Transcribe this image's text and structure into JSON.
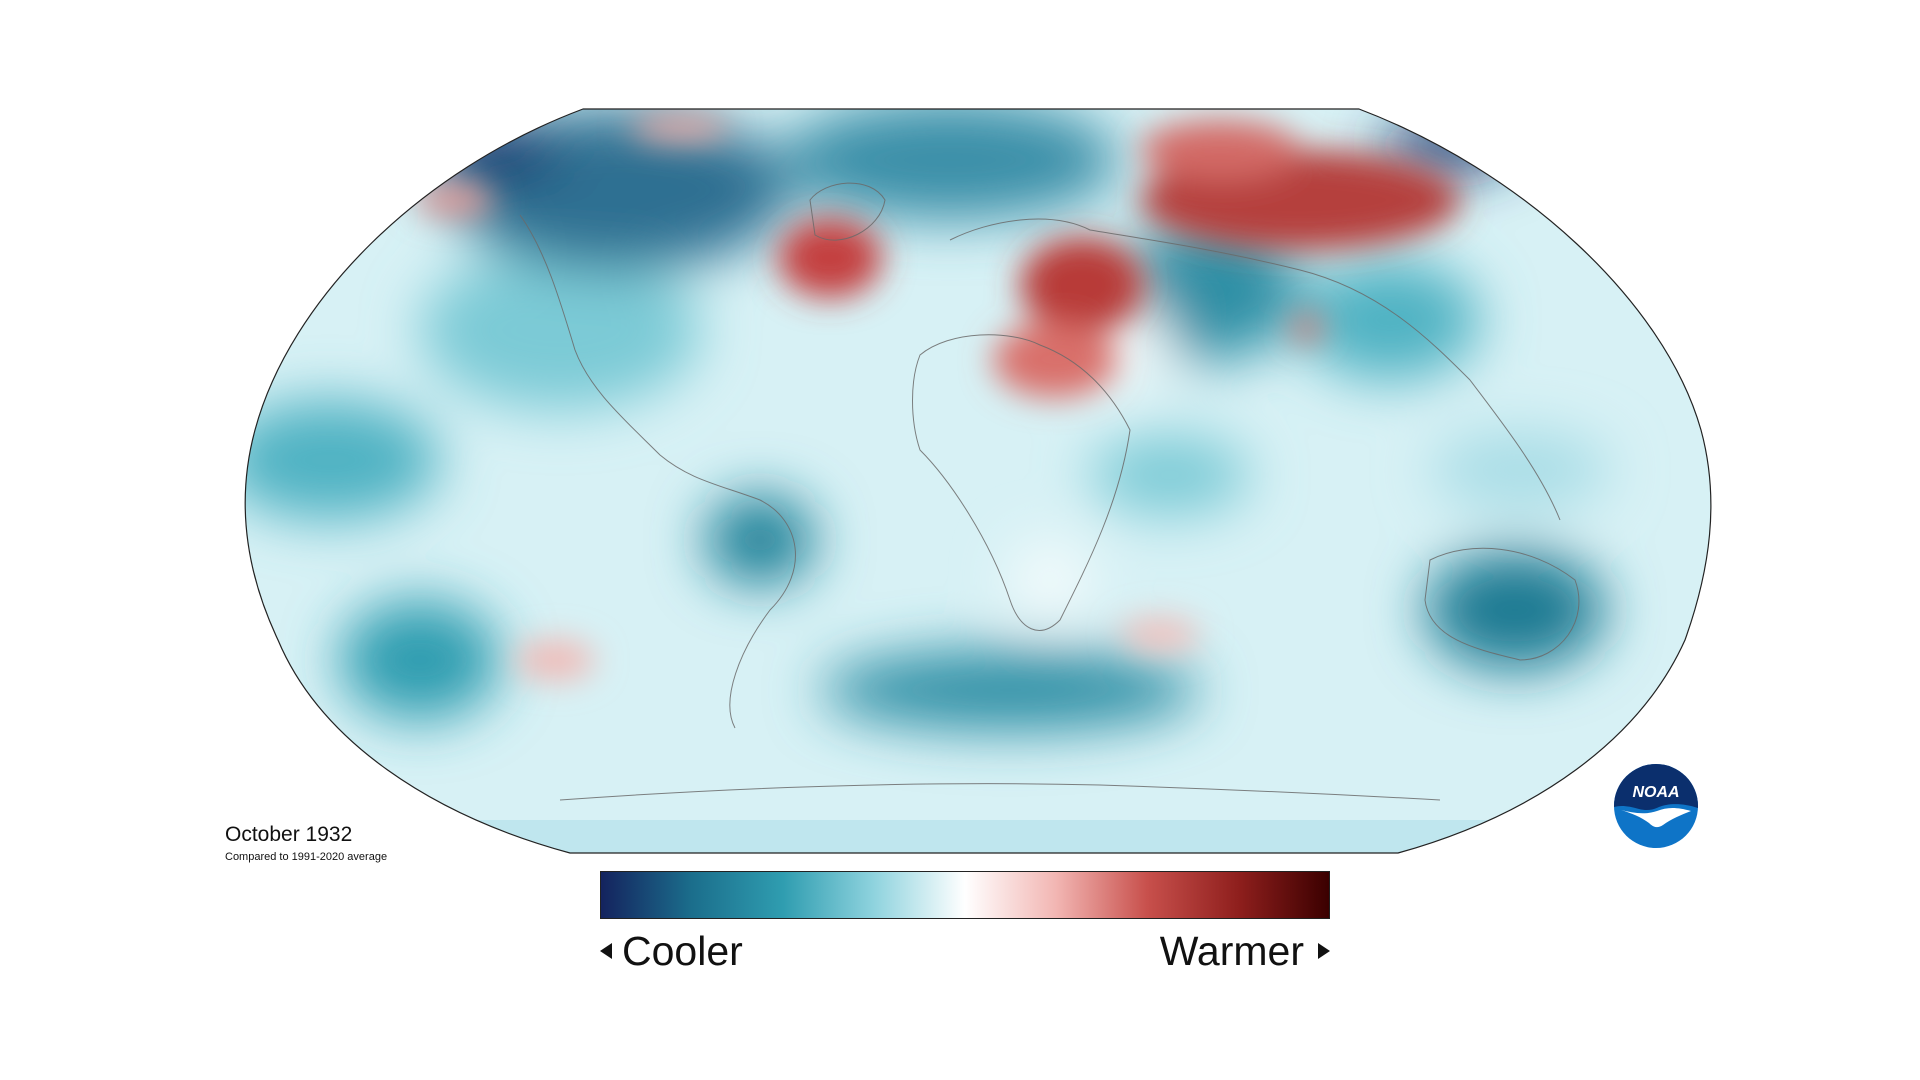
{
  "map": {
    "title": "October 1932",
    "subtitle": "Compared to 1991-2020 average",
    "projection": "Robinson",
    "colorbar": {
      "low_label": "Cooler",
      "high_label": "Warmer",
      "colors": [
        "#14235e",
        "#1b6e8c",
        "#2f9db0",
        "#8fd3de",
        "#ffffff",
        "#f2b6b3",
        "#c8504c",
        "#8f1f1d",
        "#3b0000"
      ]
    },
    "anomaly_regions": [
      {
        "name": "Arctic Canada",
        "anomaly": "cooler"
      },
      {
        "name": "North Atlantic",
        "anomaly": "warmer"
      },
      {
        "name": "Central Europe",
        "anomaly": "warmer"
      },
      {
        "name": "North Africa",
        "anomaly": "warmer"
      },
      {
        "name": "Siberia",
        "anomaly": "warmer"
      },
      {
        "name": "Central Asia",
        "anomaly": "cooler"
      },
      {
        "name": "Australia",
        "anomaly": "cooler"
      },
      {
        "name": "South America",
        "anomaly": "cooler"
      },
      {
        "name": "Southern Ocean",
        "anomaly": "cooler"
      }
    ],
    "logo": {
      "text": "NOAA",
      "colors": [
        "#0b2f6d",
        "#0e74c7",
        "#ffffff"
      ]
    }
  }
}
